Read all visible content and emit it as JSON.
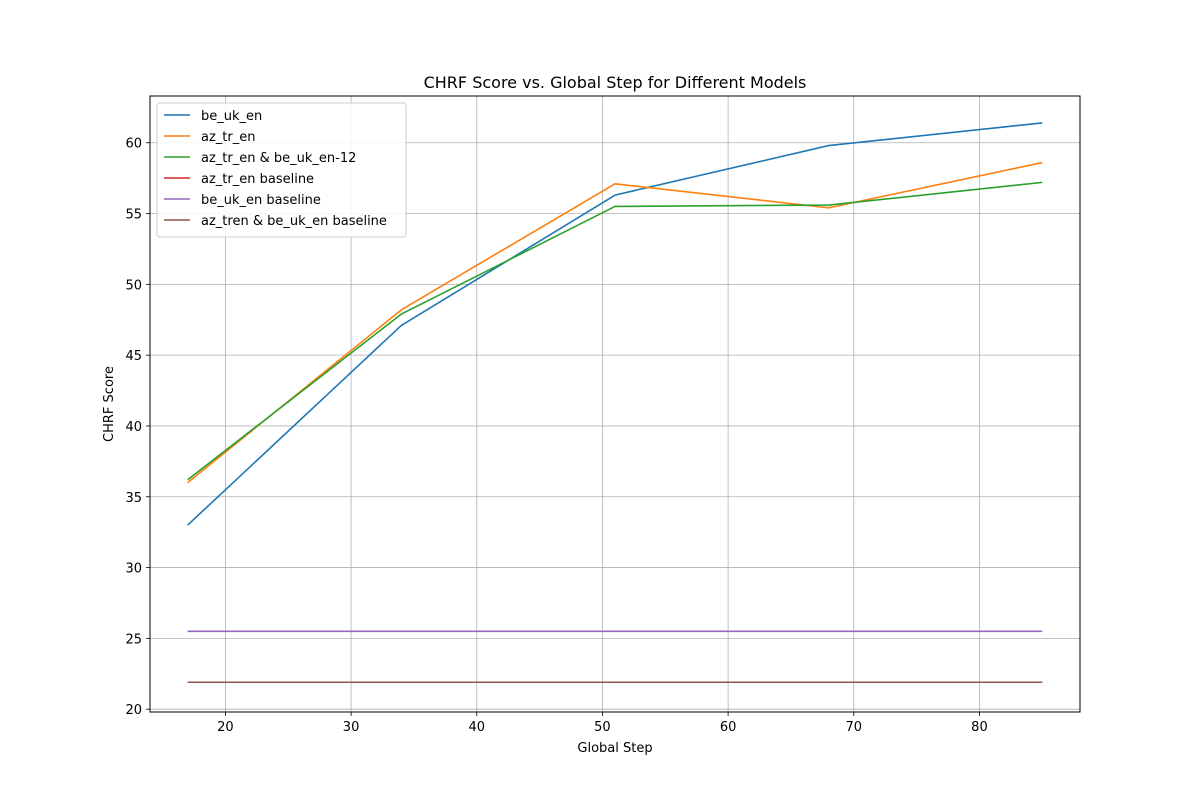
{
  "chart_data": {
    "type": "line",
    "title": "CHRF Score vs. Global Step for Different Models",
    "xlabel": "Global Step",
    "ylabel": "CHRF Score",
    "xlim": [
      14,
      88
    ],
    "ylim": [
      19.8,
      63.3
    ],
    "xticks": [
      20,
      30,
      40,
      50,
      60,
      70,
      80
    ],
    "yticks": [
      20,
      25,
      30,
      35,
      40,
      45,
      50,
      55,
      60
    ],
    "grid": true,
    "legend_position": "top-left",
    "series": [
      {
        "name": "be_uk_en",
        "color": "#1f77b4",
        "x": [
          17,
          34,
          51,
          68,
          85
        ],
        "y": [
          33.0,
          47.1,
          56.3,
          59.8,
          61.4
        ]
      },
      {
        "name": "az_tr_en",
        "color": "#ff7f0e",
        "x": [
          17,
          34,
          51,
          68,
          85
        ],
        "y": [
          36.0,
          48.2,
          57.1,
          55.4,
          58.6
        ]
      },
      {
        "name": "az_tr_en & be_uk_en-12",
        "color": "#2ca02c",
        "x": [
          17,
          34,
          51,
          68,
          85
        ],
        "y": [
          36.2,
          47.9,
          55.5,
          55.6,
          57.2
        ]
      },
      {
        "name": "az_tr_en baseline",
        "color": "#d62728",
        "x": [
          17,
          85
        ],
        "y": [
          21.9,
          21.9
        ]
      },
      {
        "name": "be_uk_en baseline",
        "color": "#9467bd",
        "x": [
          17,
          85
        ],
        "y": [
          25.5,
          25.5
        ]
      },
      {
        "name": "az_tren & be_uk_en baseline",
        "color": "#8c564b",
        "x": [
          17,
          85
        ],
        "y": [
          21.9,
          21.9
        ]
      }
    ]
  }
}
